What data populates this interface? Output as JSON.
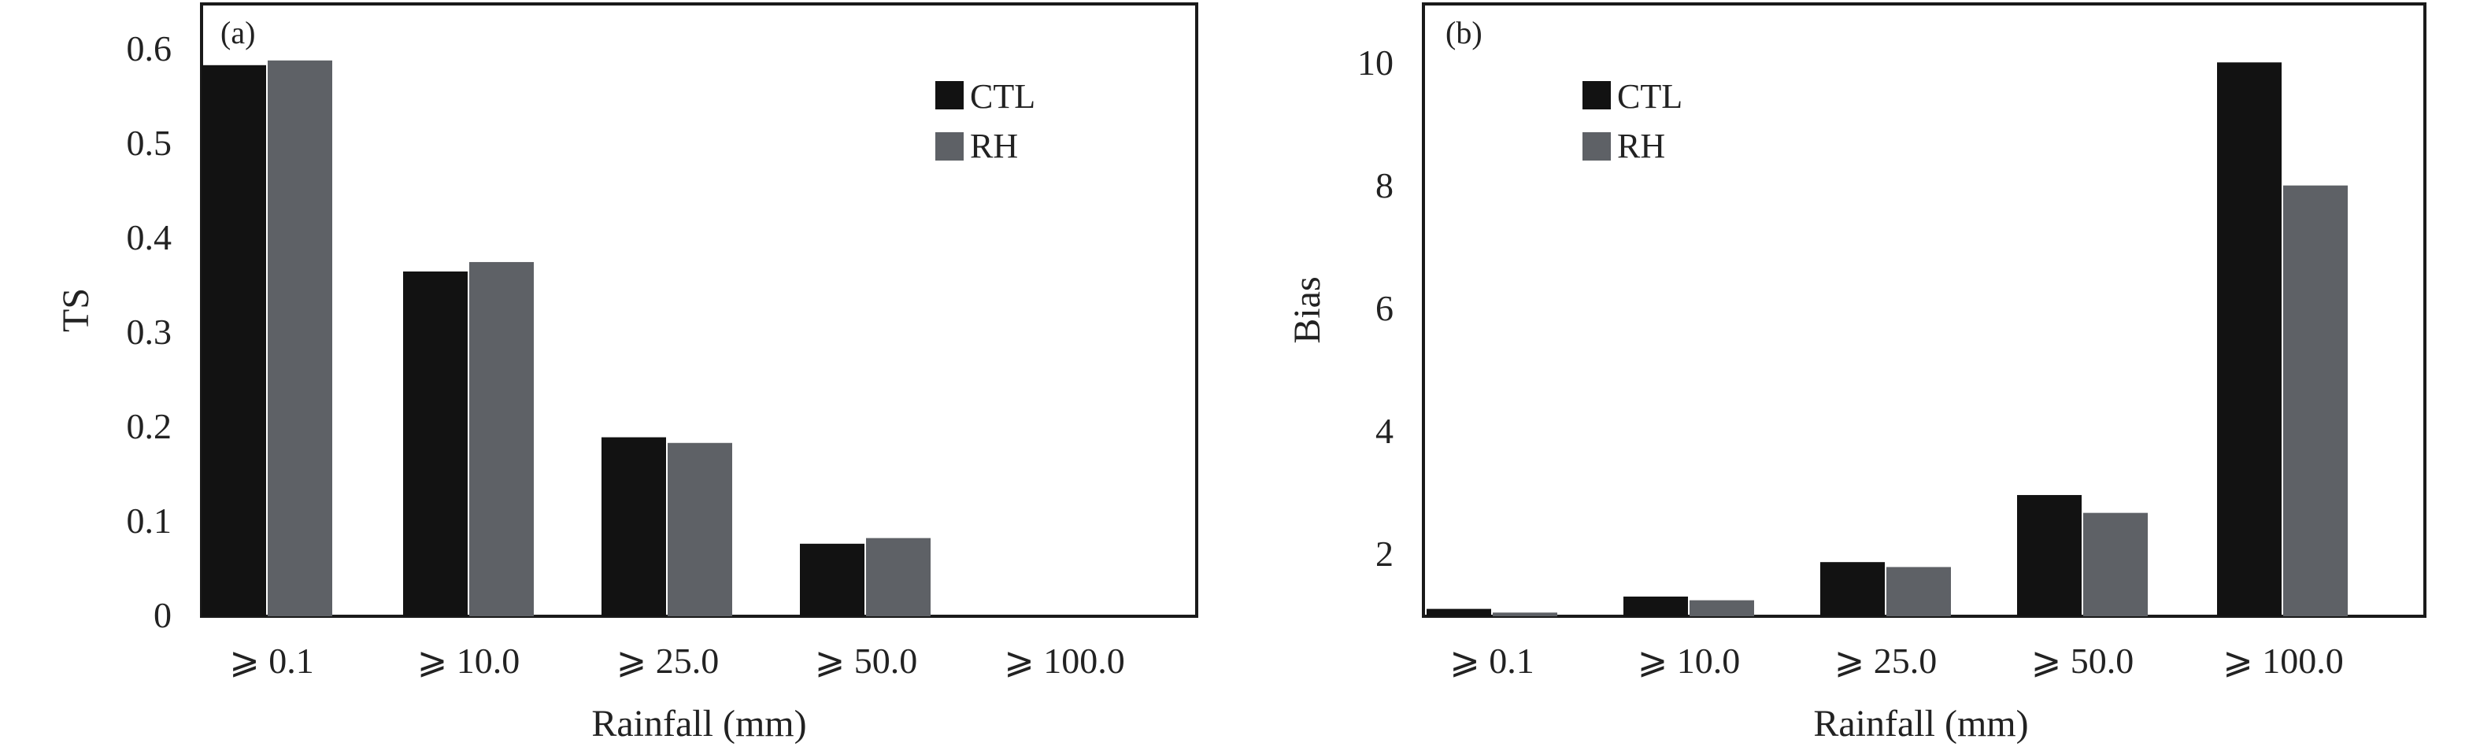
{
  "colors": {
    "ctl": "#121212",
    "rh": "#5e6166",
    "axis": "#1a1a1a",
    "background": "#ffffff"
  },
  "chart_data": [
    {
      "type": "bar",
      "panel_label": "(a)",
      "title": "",
      "xlabel": "Rainfall (mm)",
      "ylabel": "TS",
      "categories": [
        "⩾ 0.1",
        "⩾ 10.0",
        "⩾ 25.0",
        "⩾ 50.0",
        "⩾ 100.0"
      ],
      "series": [
        {
          "name": "CTL",
          "color_key": "ctl",
          "values": [
            0.585,
            0.366,
            0.19,
            0.077,
            0
          ]
        },
        {
          "name": "RH",
          "color_key": "rh",
          "values": [
            0.59,
            0.376,
            0.184,
            0.083,
            0
          ]
        }
      ],
      "ylim": [
        0,
        0.65
      ],
      "yticks": [
        0,
        0.1,
        0.2,
        0.3,
        0.4,
        0.5,
        0.6
      ],
      "ytick_labels": [
        "0",
        "0.1",
        "0.2",
        "0.3",
        "0.4",
        "0.5",
        "0.6"
      ],
      "legend_position": "top-right",
      "grid": false
    },
    {
      "type": "bar",
      "panel_label": "(b)",
      "title": "",
      "xlabel": "Rainfall (mm)",
      "ylabel": "Bias",
      "categories": [
        "⩾ 0.1",
        "⩾ 10.0",
        "⩾ 25.0",
        "⩾ 50.0",
        "⩾ 100.0"
      ],
      "series": [
        {
          "name": "CTL",
          "color_key": "ctl",
          "values": [
            1.12,
            1.32,
            1.88,
            2.97,
            10.0
          ]
        },
        {
          "name": "RH",
          "color_key": "rh",
          "values": [
            1.06,
            1.26,
            1.8,
            2.68,
            8.0
          ]
        }
      ],
      "ylim": [
        1,
        10.95
      ],
      "yticks": [
        2,
        4,
        6,
        8,
        10
      ],
      "ytick_labels": [
        "2",
        "4",
        "6",
        "8",
        "10"
      ],
      "legend_position": "top-left",
      "grid": false
    }
  ]
}
